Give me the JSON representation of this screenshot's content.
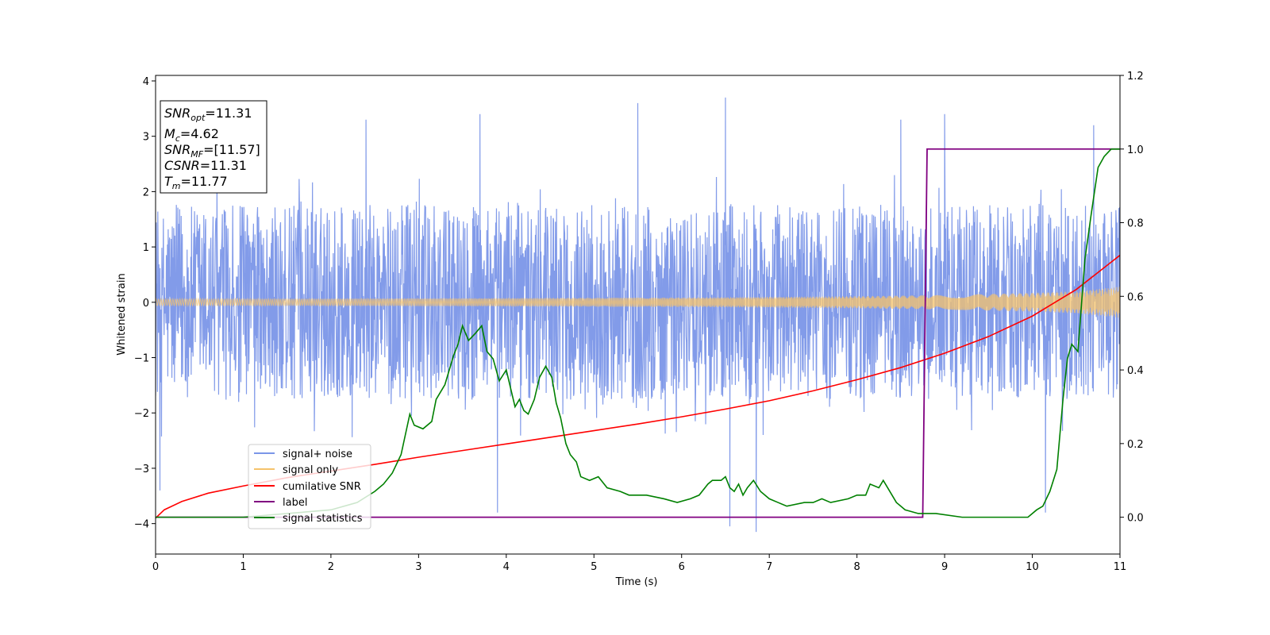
{
  "chart_data": {
    "type": "line",
    "xlabel": "Time (s)",
    "ylabel": "Whitened strain",
    "xlim": [
      0,
      11
    ],
    "ylim": [
      -4.55,
      4.1
    ],
    "y2lim": [
      -0.1,
      1.2
    ],
    "x_ticks": [
      0,
      1,
      2,
      3,
      4,
      5,
      6,
      7,
      8,
      9,
      10,
      11
    ],
    "y_ticks": [
      -4,
      -3,
      -2,
      -1,
      0,
      1,
      2,
      3,
      4
    ],
    "y2_ticks": [
      0.0,
      0.2,
      0.4,
      0.6,
      0.8,
      1.0,
      1.2
    ],
    "grid": false,
    "legend_position": "lower-left",
    "info_box": {
      "snr_opt": {
        "base": "SNR",
        "sub": "opt",
        "value": "=11.31"
      },
      "mc": {
        "base": "M",
        "sub": "c",
        "value": "=4.62"
      },
      "snr_mf": {
        "base": "SNR",
        "sub": "MF",
        "value": "=[11.57]"
      },
      "csnr": {
        "base": "CSNR",
        "value": "=11.31"
      },
      "tm": {
        "base": "T",
        "sub": "m",
        "value": "=11.77"
      }
    },
    "series": [
      {
        "name": "signal+ noise",
        "axis": "left",
        "color": "#7b96e8",
        "noise_band": {
          "typical_min": -1.6,
          "typical_max": 1.6,
          "envelope_min": -2.5,
          "envelope_max": 2.3,
          "spike_max": [
            [
              0.7,
              2.4
            ],
            [
              2.4,
              3.3
            ],
            [
              3.7,
              3.4
            ],
            [
              5.5,
              3.6
            ],
            [
              6.5,
              3.7
            ],
            [
              8.5,
              3.3
            ],
            [
              9.0,
              3.4
            ],
            [
              10.7,
              3.2
            ]
          ],
          "spike_min": [
            [
              0.05,
              -3.4
            ],
            [
              3.9,
              -3.8
            ],
            [
              6.55,
              -4.05
            ],
            [
              6.85,
              -4.15
            ],
            [
              10.15,
              -3.8
            ]
          ]
        }
      },
      {
        "name": "signal only",
        "axis": "left",
        "color": "#f5c36b",
        "envelope": {
          "x": [
            0,
            2,
            4,
            6,
            8,
            9,
            10,
            10.5,
            11
          ],
          "amp": [
            0.06,
            0.065,
            0.075,
            0.085,
            0.11,
            0.13,
            0.17,
            0.2,
            0.28
          ]
        }
      },
      {
        "name": "cumilative SNR",
        "axis": "left",
        "color": "#ff0000",
        "x": [
          0,
          0.1,
          0.3,
          0.6,
          1,
          1.5,
          2,
          2.5,
          3,
          3.5,
          4,
          4.5,
          5,
          5.5,
          6,
          6.5,
          7,
          7.5,
          8,
          8.5,
          9,
          9.5,
          10,
          10.5,
          11
        ],
        "y": [
          -3.9,
          -3.75,
          -3.6,
          -3.45,
          -3.32,
          -3.17,
          -3.05,
          -2.93,
          -2.8,
          -2.68,
          -2.56,
          -2.44,
          -2.32,
          -2.2,
          -2.07,
          -1.93,
          -1.78,
          -1.6,
          -1.4,
          -1.18,
          -0.92,
          -0.62,
          -0.25,
          0.23,
          0.85
        ]
      },
      {
        "name": "label",
        "axis": "right",
        "color": "#800080",
        "x": [
          0,
          8.75,
          8.8,
          11
        ],
        "y": [
          0.0,
          0.0,
          1.0,
          1.0
        ]
      },
      {
        "name": "signal statistics",
        "axis": "right",
        "color": "#008000",
        "x": [
          0,
          1.0,
          1.5,
          2.0,
          2.3,
          2.5,
          2.6,
          2.7,
          2.8,
          2.9,
          2.95,
          3.05,
          3.15,
          3.2,
          3.3,
          3.4,
          3.45,
          3.5,
          3.57,
          3.65,
          3.72,
          3.78,
          3.85,
          3.92,
          4.0,
          4.05,
          4.1,
          4.15,
          4.2,
          4.25,
          4.32,
          4.38,
          4.45,
          4.52,
          4.57,
          4.62,
          4.68,
          4.73,
          4.8,
          4.85,
          4.95,
          5.05,
          5.15,
          5.3,
          5.4,
          5.6,
          5.8,
          5.95,
          6.1,
          6.2,
          6.3,
          6.35,
          6.45,
          6.5,
          6.55,
          6.6,
          6.65,
          6.7,
          6.75,
          6.82,
          6.9,
          7.0,
          7.1,
          7.2,
          7.4,
          7.5,
          7.6,
          7.7,
          7.9,
          8.0,
          8.1,
          8.15,
          8.25,
          8.3,
          8.45,
          8.55,
          8.7,
          8.9,
          9.2,
          9.5,
          9.8,
          9.95,
          10.05,
          10.12,
          10.2,
          10.28,
          10.35,
          10.4,
          10.45,
          10.52,
          10.6,
          10.67,
          10.75,
          10.82,
          10.9,
          11.0
        ],
        "y": [
          0.0,
          0.0,
          0.01,
          0.02,
          0.04,
          0.07,
          0.09,
          0.12,
          0.17,
          0.28,
          0.25,
          0.24,
          0.26,
          0.32,
          0.36,
          0.44,
          0.47,
          0.52,
          0.48,
          0.5,
          0.52,
          0.45,
          0.43,
          0.37,
          0.4,
          0.35,
          0.3,
          0.32,
          0.29,
          0.28,
          0.32,
          0.38,
          0.41,
          0.38,
          0.31,
          0.27,
          0.2,
          0.17,
          0.15,
          0.11,
          0.1,
          0.11,
          0.08,
          0.07,
          0.06,
          0.06,
          0.05,
          0.04,
          0.05,
          0.06,
          0.09,
          0.1,
          0.1,
          0.11,
          0.08,
          0.07,
          0.09,
          0.06,
          0.08,
          0.1,
          0.07,
          0.05,
          0.04,
          0.03,
          0.04,
          0.04,
          0.05,
          0.04,
          0.05,
          0.06,
          0.06,
          0.09,
          0.08,
          0.1,
          0.04,
          0.02,
          0.01,
          0.01,
          0.0,
          0.0,
          0.0,
          0.0,
          0.02,
          0.03,
          0.07,
          0.13,
          0.32,
          0.43,
          0.47,
          0.45,
          0.7,
          0.82,
          0.95,
          0.98,
          1.0,
          1.0
        ]
      }
    ]
  }
}
